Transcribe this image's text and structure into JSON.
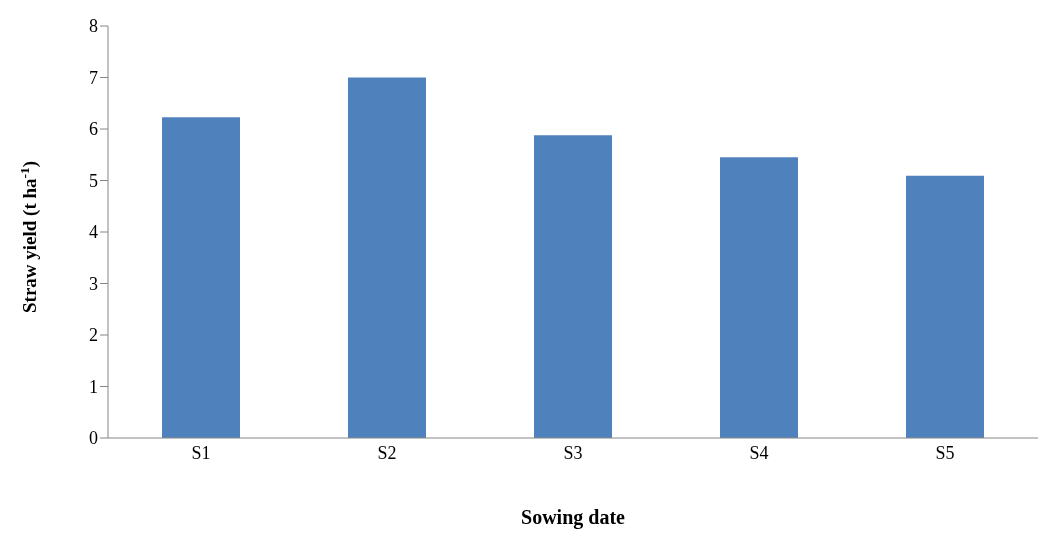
{
  "chart_data": {
    "type": "bar",
    "xlabel": "Sowing date",
    "ylabel": "Straw yield (t ha$^{-1}$)",
    "categories": [
      "S1",
      "S2",
      "S3",
      "S4",
      "S5"
    ],
    "values": [
      6.23,
      7.0,
      5.88,
      5.45,
      5.09
    ],
    "color": "#4f81bd",
    "ylim": [
      0,
      8
    ],
    "yticks": [
      0,
      1,
      2,
      3,
      4,
      5,
      6,
      7,
      8
    ],
    "grid": false,
    "legend": false
  }
}
